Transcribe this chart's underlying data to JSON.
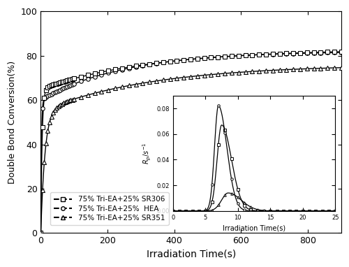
{
  "title": "",
  "xlabel": "Irradiation Time(s)",
  "ylabel": "Double Bond Conversion(%)",
  "xlim": [
    0,
    900
  ],
  "ylim": [
    0,
    100
  ],
  "xticks": [
    0,
    200,
    400,
    600,
    800
  ],
  "yticks": [
    0,
    20,
    40,
    60,
    80,
    100
  ],
  "legend_labels": [
    "75% Tri-EA+25% SR306",
    "75% Tri-EA+25%  HEA",
    "75% Tri-EA+25% SR351"
  ],
  "markers": [
    "s",
    "o",
    "^"
  ],
  "inset": {
    "xlabel": "Irradiation Time(s)",
    "ylabel": "$R_p/s^{-1}$",
    "xlim": [
      0,
      25
    ],
    "ylim": [
      0,
      0.09
    ],
    "yticks": [
      0.0,
      0.02,
      0.04,
      0.06,
      0.08
    ],
    "xticks": [
      0,
      5,
      10,
      15,
      20,
      25
    ]
  }
}
